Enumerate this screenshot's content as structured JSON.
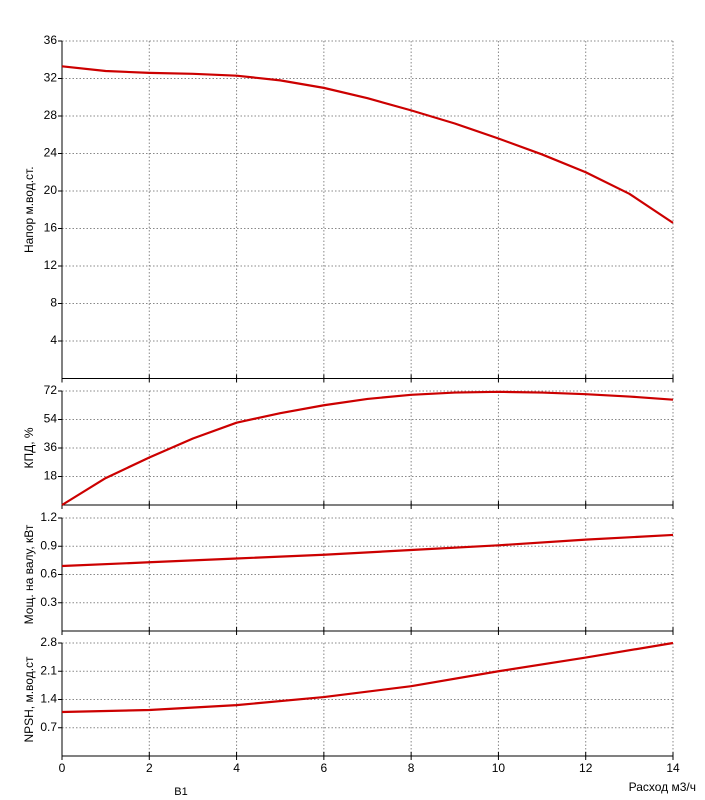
{
  "chart_data": [
    {
      "type": "line",
      "ylabel": "Напор м.вод.ст.",
      "x": [
        0,
        1,
        2,
        3,
        4,
        5,
        6,
        7,
        8,
        9,
        10,
        11,
        12,
        13,
        14
      ],
      "values": [
        33.3,
        32.8,
        32.6,
        32.5,
        32.3,
        31.8,
        31.0,
        29.9,
        28.6,
        27.2,
        25.6,
        23.9,
        22.0,
        19.7,
        16.6
      ],
      "color": "#cc0000",
      "xlim": [
        0,
        14
      ],
      "xticks": [
        0,
        2,
        4,
        6,
        8,
        10,
        12,
        14
      ],
      "ylim": [
        0,
        36
      ],
      "yticks": [
        4,
        8,
        12,
        16,
        20,
        24,
        28,
        32,
        36
      ],
      "grid": true
    },
    {
      "type": "line",
      "ylabel": "КПД, %",
      "x": [
        0,
        1,
        2,
        3,
        4,
        5,
        6,
        7,
        8,
        9,
        10,
        11,
        12,
        13,
        14
      ],
      "values": [
        0,
        17,
        30,
        42,
        52,
        58,
        63,
        67,
        69.6,
        71,
        71.5,
        71,
        70,
        68.5,
        66.5
      ],
      "color": "#cc0000",
      "xlim": [
        0,
        14
      ],
      "xticks": [
        0,
        2,
        4,
        6,
        8,
        10,
        12,
        14
      ],
      "ylim": [
        0,
        72
      ],
      "yticks": [
        18,
        36,
        54,
        72
      ],
      "grid": true
    },
    {
      "type": "line",
      "ylabel": "Мощ. на валу, кВт",
      "x": [
        0,
        2,
        4,
        6,
        8,
        10,
        12,
        14
      ],
      "values": [
        0.69,
        0.73,
        0.77,
        0.81,
        0.86,
        0.91,
        0.97,
        1.02
      ],
      "color": "#cc0000",
      "xlim": [
        0,
        14
      ],
      "xticks": [
        0,
        2,
        4,
        6,
        8,
        10,
        12,
        14
      ],
      "ylim": [
        0,
        1.2
      ],
      "yticks": [
        0.3,
        0.6,
        0.9,
        1.2
      ],
      "grid": true
    },
    {
      "type": "line",
      "ylabel": "NPSH, м.вод.ст",
      "xlabel": "Расход м3/ч",
      "annotation": "B1",
      "x": [
        0,
        2,
        4,
        6,
        8,
        10,
        12,
        14
      ],
      "values": [
        1.09,
        1.14,
        1.26,
        1.46,
        1.73,
        2.1,
        2.44,
        2.8
      ],
      "color": "#cc0000",
      "xlim": [
        0,
        14
      ],
      "xticks": [
        0,
        2,
        4,
        6,
        8,
        10,
        12,
        14
      ],
      "ylim": [
        0,
        2.8
      ],
      "yticks": [
        0.7,
        1.4,
        2.1,
        2.8
      ],
      "grid": true
    }
  ]
}
